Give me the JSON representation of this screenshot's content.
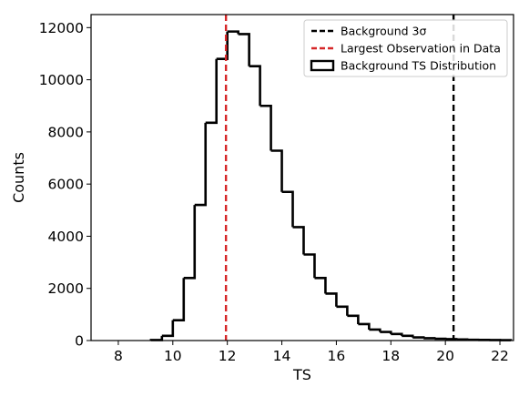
{
  "chart_data": {
    "type": "histogram",
    "title": "",
    "xlabel": "TS",
    "ylabel": "Counts",
    "xlim": [
      7.0,
      22.5
    ],
    "ylim": [
      0,
      12500
    ],
    "xticks": [
      8,
      10,
      12,
      14,
      16,
      18,
      20,
      22
    ],
    "yticks": [
      0,
      2000,
      4000,
      6000,
      8000,
      10000,
      12000
    ],
    "grid": false,
    "bin_width": 0.4,
    "bin_left_edges": [
      9.2,
      9.6,
      10.0,
      10.4,
      10.8,
      11.2,
      11.6,
      12.0,
      12.4,
      12.8,
      13.2,
      13.6,
      14.0,
      14.4,
      14.8,
      15.2,
      15.6,
      16.0,
      16.4,
      16.8,
      17.2,
      17.6,
      18.0,
      18.4,
      18.8,
      19.2,
      19.6,
      20.0,
      20.4,
      20.8,
      21.2,
      21.6,
      22.0
    ],
    "counts": [
      20,
      180,
      780,
      2400,
      5200,
      8350,
      10800,
      11850,
      11750,
      10520,
      9000,
      7280,
      5700,
      4350,
      3300,
      2400,
      1800,
      1300,
      950,
      630,
      420,
      330,
      250,
      180,
      120,
      90,
      70,
      55,
      40,
      30,
      25,
      20,
      15
    ],
    "series": [
      {
        "name": "Background 3σ",
        "kind": "vline",
        "x": 20.3,
        "color": "#000000",
        "style": "dashed"
      },
      {
        "name": "Largest Observation in Data",
        "kind": "vline",
        "x": 11.95,
        "color": "#d62728",
        "style": "dashed"
      },
      {
        "name": "Background TS Distribution",
        "kind": "step-histogram",
        "color": "#000000"
      }
    ],
    "legend_position": "top-right"
  }
}
